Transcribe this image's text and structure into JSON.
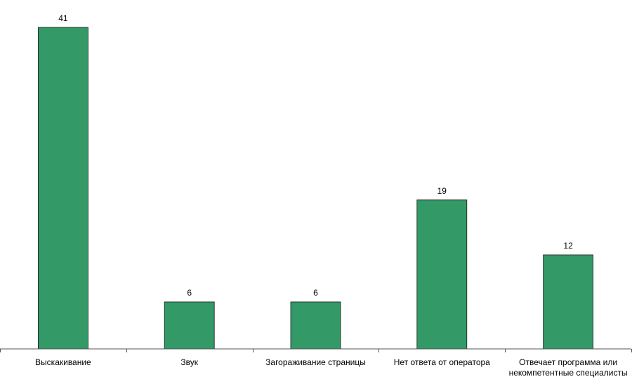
{
  "chart_data": {
    "type": "bar",
    "title": "",
    "xlabel": "",
    "ylabel": "",
    "categories": [
      [
        "Выскакивание"
      ],
      [
        "Звук"
      ],
      [
        "Загораживание страницы"
      ],
      [
        "Нет ответа от оператора"
      ],
      [
        "Отвечает программа или",
        "некомпетентные специалисты"
      ]
    ],
    "values": [
      41,
      6,
      6,
      19,
      12
    ],
    "value_labels": [
      "41",
      "6",
      "6",
      "19",
      "12"
    ],
    "ylim": [
      0,
      41
    ],
    "grid": false,
    "legend": "none",
    "bar_color": "#339966"
  }
}
